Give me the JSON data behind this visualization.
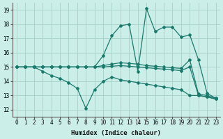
{
  "xlabel": "Humidex (Indice chaleur)",
  "bg_color": "#cceee8",
  "grid_color": "#aad4cc",
  "line_color": "#1a7a6e",
  "xlim": [
    -0.5,
    23.5
  ],
  "ylim": [
    11.5,
    19.5
  ],
  "xticks": [
    0,
    1,
    2,
    3,
    4,
    5,
    6,
    7,
    8,
    9,
    10,
    11,
    12,
    13,
    14,
    15,
    16,
    17,
    18,
    19,
    20,
    21,
    22,
    23
  ],
  "yticks": [
    12,
    13,
    14,
    15,
    16,
    17,
    18,
    19
  ],
  "lines": [
    {
      "x": [
        0,
        1,
        2,
        3,
        4,
        5,
        6,
        7,
        8,
        9,
        10,
        11,
        12,
        13,
        14,
        15,
        16,
        17,
        18,
        19,
        20,
        21,
        22,
        23
      ],
      "y": [
        15,
        15,
        15,
        15,
        15,
        15,
        15,
        15,
        15,
        15,
        15.8,
        17.2,
        17.9,
        18.0,
        14.7,
        19.1,
        17.5,
        17.8,
        17.8,
        17.1,
        17.25,
        15.5,
        13.15,
        12.8
      ]
    },
    {
      "x": [
        0,
        1,
        2,
        3,
        4,
        5,
        6,
        7,
        8,
        9,
        10,
        11,
        12,
        13,
        14,
        15,
        16,
        17,
        18,
        19,
        20,
        21,
        22,
        23
      ],
      "y": [
        15,
        15,
        15,
        15,
        15,
        15,
        15,
        15,
        15,
        15,
        15.1,
        15.2,
        15.3,
        15.25,
        15.2,
        15.1,
        15.05,
        15.0,
        14.95,
        14.9,
        15.5,
        13.1,
        13.0,
        12.8
      ]
    },
    {
      "x": [
        0,
        1,
        2,
        3,
        4,
        5,
        6,
        7,
        8,
        9,
        10,
        11,
        12,
        13,
        14,
        15,
        16,
        17,
        18,
        19,
        20,
        21,
        22,
        23
      ],
      "y": [
        15,
        15,
        15,
        15,
        15,
        15,
        15,
        15,
        15,
        15,
        15.0,
        15.05,
        15.1,
        15.05,
        15.0,
        14.95,
        14.9,
        14.85,
        14.8,
        14.75,
        15.0,
        13.0,
        12.9,
        12.75
      ]
    },
    {
      "x": [
        0,
        1,
        2,
        3,
        4,
        5,
        6,
        7,
        8,
        9,
        10,
        11,
        12,
        13,
        14,
        15,
        16,
        17,
        18,
        19,
        20,
        21,
        22,
        23
      ],
      "y": [
        15,
        15,
        15,
        14.7,
        14.4,
        14.2,
        13.9,
        13.5,
        12.1,
        13.4,
        14.0,
        14.3,
        14.1,
        14.0,
        13.9,
        13.8,
        13.7,
        13.6,
        13.5,
        13.4,
        13.0,
        13.0,
        12.9,
        12.75
      ]
    }
  ]
}
